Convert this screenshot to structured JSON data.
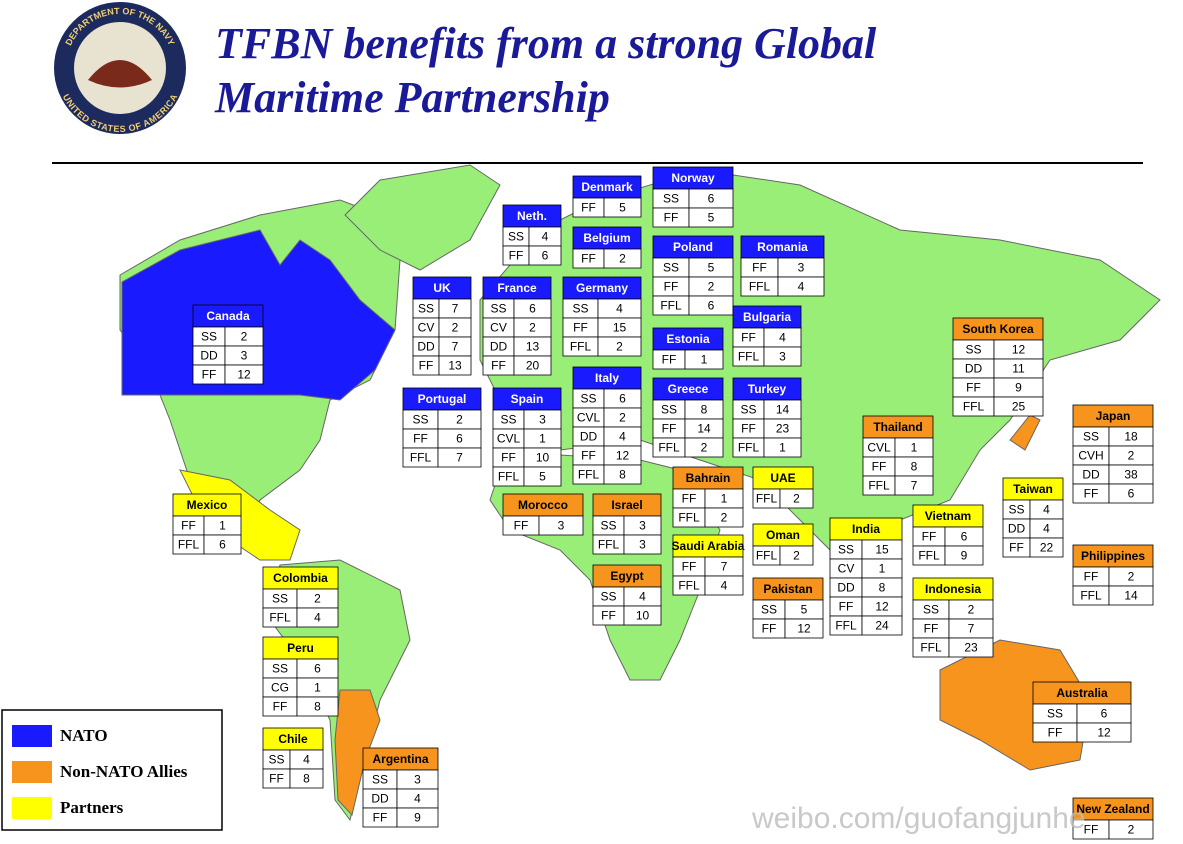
{
  "header": {
    "title_lines": [
      "TFBN benefits from a strong Global",
      "Maritime Partnership"
    ],
    "seal_top": "DEPARTMENT OF THE NAVY",
    "seal_bottom": "UNITED STATES OF AMERICA"
  },
  "legend": [
    {
      "label": "NATO",
      "color": "#1a1aff"
    },
    {
      "label": "Non-NATO Allies",
      "color": "#f7941d"
    },
    {
      "label": "Partners",
      "color": "#ffff00"
    }
  ],
  "countries": [
    {
      "name": "Canada",
      "group": "NATO",
      "rows": [
        [
          "SS",
          2
        ],
        [
          "DD",
          3
        ],
        [
          "FF",
          12
        ]
      ]
    },
    {
      "name": "Neth.",
      "group": "NATO",
      "rows": [
        [
          "SS",
          4
        ],
        [
          "FF",
          6
        ]
      ]
    },
    {
      "name": "Denmark",
      "group": "NATO",
      "rows": [
        [
          "FF",
          5
        ]
      ]
    },
    {
      "name": "Norway",
      "group": "NATO",
      "rows": [
        [
          "SS",
          6
        ],
        [
          "FF",
          5
        ]
      ]
    },
    {
      "name": "Belgium",
      "group": "NATO",
      "rows": [
        [
          "FF",
          2
        ]
      ]
    },
    {
      "name": "Poland",
      "group": "NATO",
      "rows": [
        [
          "SS",
          5
        ],
        [
          "FF",
          2
        ],
        [
          "FFL",
          6
        ]
      ]
    },
    {
      "name": "Romania",
      "group": "NATO",
      "rows": [
        [
          "FF",
          3
        ],
        [
          "FFL",
          4
        ]
      ]
    },
    {
      "name": "UK",
      "group": "NATO",
      "rows": [
        [
          "SS",
          7
        ],
        [
          "CV",
          2
        ],
        [
          "DD",
          7
        ],
        [
          "FF",
          13
        ]
      ]
    },
    {
      "name": "France",
      "group": "NATO",
      "rows": [
        [
          "SS",
          6
        ],
        [
          "CV",
          2
        ],
        [
          "DD",
          13
        ],
        [
          "FF",
          20
        ]
      ]
    },
    {
      "name": "Germany",
      "group": "NATO",
      "rows": [
        [
          "SS",
          4
        ],
        [
          "FF",
          15
        ],
        [
          "FFL",
          2
        ]
      ]
    },
    {
      "name": "Bulgaria",
      "group": "NATO",
      "rows": [
        [
          "FF",
          4
        ],
        [
          "FFL",
          3
        ]
      ]
    },
    {
      "name": "Estonia",
      "group": "NATO",
      "rows": [
        [
          "FF",
          1
        ]
      ]
    },
    {
      "name": "Portugal",
      "group": "NATO",
      "rows": [
        [
          "SS",
          2
        ],
        [
          "FF",
          6
        ],
        [
          "FFL",
          7
        ]
      ]
    },
    {
      "name": "Spain",
      "group": "NATO",
      "rows": [
        [
          "SS",
          3
        ],
        [
          "CVL",
          1
        ],
        [
          "FF",
          10
        ],
        [
          "FFL",
          5
        ]
      ]
    },
    {
      "name": "Italy",
      "group": "NATO",
      "rows": [
        [
          "SS",
          6
        ],
        [
          "CVL",
          2
        ],
        [
          "DD",
          4
        ],
        [
          "FF",
          12
        ],
        [
          "FFL",
          8
        ]
      ]
    },
    {
      "name": "Greece",
      "group": "NATO",
      "rows": [
        [
          "SS",
          8
        ],
        [
          "FF",
          14
        ],
        [
          "FFL",
          2
        ]
      ]
    },
    {
      "name": "Turkey",
      "group": "NATO",
      "rows": [
        [
          "SS",
          14
        ],
        [
          "FF",
          23
        ],
        [
          "FFL",
          1
        ]
      ]
    },
    {
      "name": "South Korea",
      "group": "Non-NATO Allies",
      "rows": [
        [
          "SS",
          12
        ],
        [
          "DD",
          11
        ],
        [
          "FF",
          9
        ],
        [
          "FFL",
          25
        ]
      ]
    },
    {
      "name": "Thailand",
      "group": "Non-NATO Allies",
      "rows": [
        [
          "CVL",
          1
        ],
        [
          "FF",
          8
        ],
        [
          "FFL",
          7
        ]
      ]
    },
    {
      "name": "Japan",
      "group": "Non-NATO Allies",
      "rows": [
        [
          "SS",
          18
        ],
        [
          "CVH",
          2
        ],
        [
          "DD",
          38
        ],
        [
          "FF",
          6
        ]
      ]
    },
    {
      "name": "Bahrain",
      "group": "Non-NATO Allies",
      "rows": [
        [
          "FF",
          1
        ],
        [
          "FFL",
          2
        ]
      ]
    },
    {
      "name": "UAE",
      "group": "Partners",
      "rows": [
        [
          "FFL",
          2
        ]
      ]
    },
    {
      "name": "Morocco",
      "group": "Non-NATO Allies",
      "rows": [
        [
          "FF",
          3
        ]
      ]
    },
    {
      "name": "Israel",
      "group": "Non-NATO Allies",
      "rows": [
        [
          "SS",
          3
        ],
        [
          "FFL",
          3
        ]
      ]
    },
    {
      "name": "Mexico",
      "group": "Partners",
      "rows": [
        [
          "FF",
          1
        ],
        [
          "FFL",
          6
        ]
      ]
    },
    {
      "name": "Taiwan",
      "group": "Partners",
      "rows": [
        [
          "SS",
          4
        ],
        [
          "DD",
          4
        ],
        [
          "FF",
          22
        ]
      ]
    },
    {
      "name": "Vietnam",
      "group": "Partners",
      "rows": [
        [
          "FF",
          6
        ],
        [
          "FFL",
          9
        ]
      ]
    },
    {
      "name": "Oman",
      "group": "Partners",
      "rows": [
        [
          "FFL",
          2
        ]
      ]
    },
    {
      "name": "India",
      "group": "Partners",
      "rows": [
        [
          "SS",
          15
        ],
        [
          "CV",
          1
        ],
        [
          "DD",
          8
        ],
        [
          "FF",
          12
        ],
        [
          "FFL",
          24
        ]
      ]
    },
    {
      "name": "Saudi Arabia",
      "group": "Partners",
      "rows": [
        [
          "FF",
          7
        ],
        [
          "FFL",
          4
        ]
      ]
    },
    {
      "name": "Philippines",
      "group": "Non-NATO Allies",
      "rows": [
        [
          "FF",
          2
        ],
        [
          "FFL",
          14
        ]
      ]
    },
    {
      "name": "Colombia",
      "group": "Partners",
      "rows": [
        [
          "SS",
          2
        ],
        [
          "FFL",
          4
        ]
      ]
    },
    {
      "name": "Egypt",
      "group": "Non-NATO Allies",
      "rows": [
        [
          "SS",
          4
        ],
        [
          "FF",
          10
        ]
      ]
    },
    {
      "name": "Pakistan",
      "group": "Non-NATO Allies",
      "rows": [
        [
          "SS",
          5
        ],
        [
          "FF",
          12
        ]
      ]
    },
    {
      "name": "Indonesia",
      "group": "Partners",
      "rows": [
        [
          "SS",
          2
        ],
        [
          "FF",
          7
        ],
        [
          "FFL",
          23
        ]
      ]
    },
    {
      "name": "Peru",
      "group": "Partners",
      "rows": [
        [
          "SS",
          6
        ],
        [
          "CG",
          1
        ],
        [
          "FF",
          8
        ]
      ]
    },
    {
      "name": "Australia",
      "group": "Non-NATO Allies",
      "rows": [
        [
          "SS",
          6
        ],
        [
          "FF",
          12
        ]
      ]
    },
    {
      "name": "Chile",
      "group": "Partners",
      "rows": [
        [
          "SS",
          4
        ],
        [
          "FF",
          8
        ]
      ]
    },
    {
      "name": "Argentina",
      "group": "Non-NATO Allies",
      "rows": [
        [
          "SS",
          3
        ],
        [
          "DD",
          4
        ],
        [
          "FF",
          9
        ]
      ]
    },
    {
      "name": "New Zealand",
      "group": "Non-NATO Allies",
      "rows": [
        [
          "FF",
          2
        ]
      ]
    }
  ],
  "watermark": "weibo.com/guofangjunhe"
}
